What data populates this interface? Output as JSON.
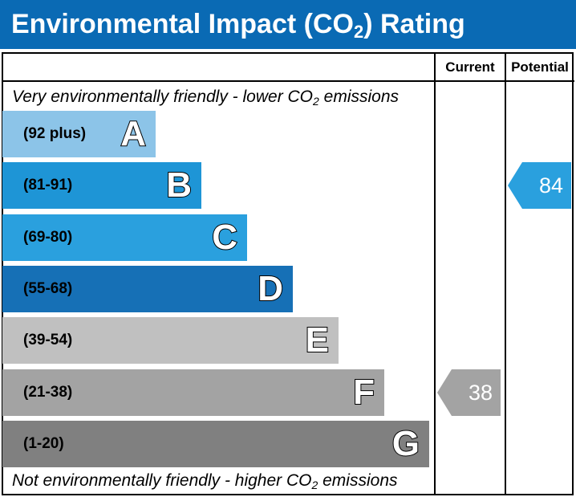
{
  "header": {
    "title_pre": "Environmental Impact (CO",
    "title_sub": "2",
    "title_post": ") Rating"
  },
  "columns": {
    "current": "Current",
    "potential": "Potential"
  },
  "top_caption": {
    "pre": "Very environmentally friendly - lower CO",
    "sub": "2",
    "post": " emissions"
  },
  "bottom_caption": {
    "pre": "Not environmentally friendly - higher CO",
    "sub": "2",
    "post": " emissions"
  },
  "colors": {
    "header_bg": "#0a6ab4",
    "A": "#8cc4e8",
    "B": "#1e95d6",
    "C": "#2aa0de",
    "D": "#1670b6",
    "E": "#c0c0c0",
    "F": "#a3a3a3",
    "G": "#808080",
    "current_arrow": "#a3a3a3",
    "potential_arrow": "#2aa0de"
  },
  "chart_data": {
    "type": "bar",
    "categories": [
      "A",
      "B",
      "C",
      "D",
      "E",
      "F",
      "G"
    ],
    "ranges": [
      "(92 plus)",
      "(81-91)",
      "(69-80)",
      "(55-68)",
      "(39-54)",
      "(21-38)",
      "(1-20)"
    ],
    "current": {
      "value": "38",
      "band": "F"
    },
    "potential": {
      "value": "84",
      "band": "B"
    }
  }
}
